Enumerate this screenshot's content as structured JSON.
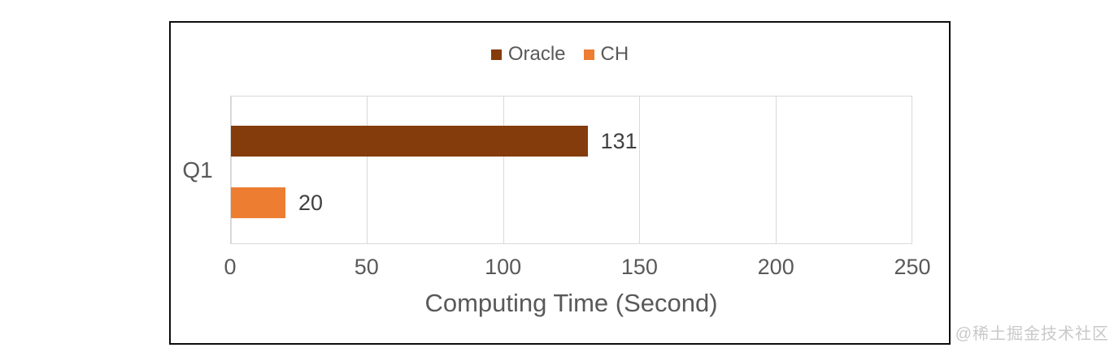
{
  "chart_data": {
    "type": "bar",
    "orientation": "horizontal",
    "title": "",
    "categories": [
      "Q1"
    ],
    "series": [
      {
        "name": "Oracle",
        "color": "#843C0C",
        "values": [
          131
        ]
      },
      {
        "name": "CH",
        "color": "#ED7D31",
        "values": [
          20
        ]
      }
    ],
    "data_labels": [
      "131",
      "20"
    ],
    "xlabel": "Computing Time (Second)",
    "ylabel": "",
    "xlim": [
      0,
      250
    ],
    "xticks": [
      "0",
      "50",
      "100",
      "150",
      "200",
      "250"
    ],
    "grid": true,
    "legend_position": "top"
  },
  "colors": {
    "oracle_bar": "#843C0C",
    "ch_bar": "#ED7D31",
    "axis_text": "#595959",
    "value_text": "#404040",
    "gridline": "#D9D9D9",
    "chart_border": "#0D0D0D",
    "watermark_text": "#C9C9C9"
  },
  "watermark": "@稀土掘金技术社区"
}
